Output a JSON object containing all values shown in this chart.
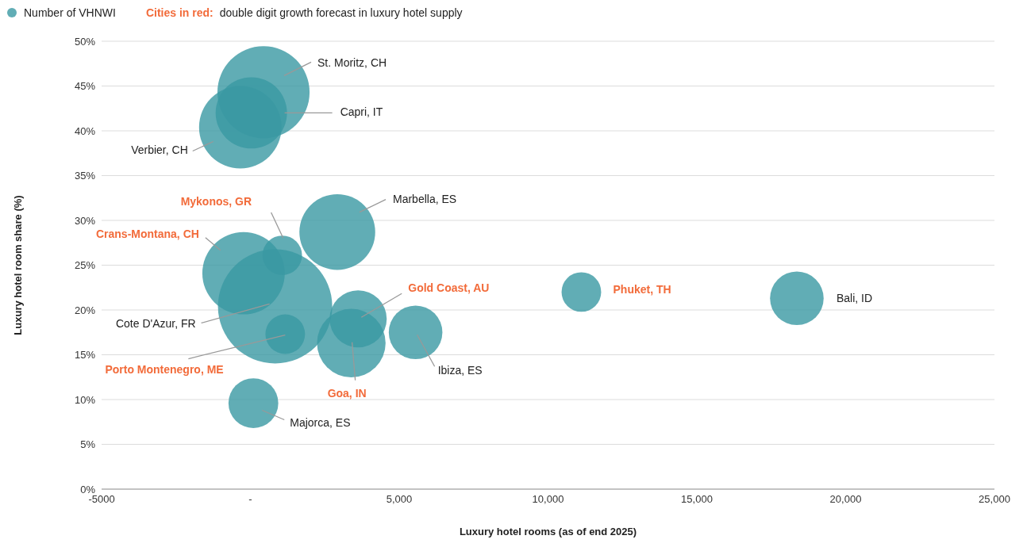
{
  "chart_data": {
    "type": "bubble",
    "xlabel": "Luxury hotel rooms (as of end 2025)",
    "ylabel": "Luxury hotel room share (%)",
    "x": [
      440,
      30,
      -340,
      2920,
      1070,
      -230,
      830,
      1170,
      3620,
      3390,
      5550,
      100,
      11120,
      18360
    ],
    "series": [
      {
        "name": "Number of VHNWI",
        "color": "#3a98a2",
        "values": [
          44.3,
          42.0,
          40.4,
          28.7,
          26.1,
          24.1,
          20.4,
          17.3,
          19.0,
          16.3,
          17.5,
          9.6,
          22.0,
          21.3
        ],
        "sizes": [
          0.65,
          0.39,
          0.52,
          0.44,
          0.12,
          0.52,
          1,
          0.12,
          0.25,
          0.36,
          0.22,
          0.19,
          0.12,
          0.22
        ],
        "value_labels": [
          "St. Moritz, CH",
          "Capri, IT",
          "Verbier, CH",
          "Marbella, ES",
          "Mykonos, GR",
          "Crans-Montana, CH",
          "Cote D'Azur, FR",
          "Porto Montenegro, ME",
          "Gold Coast, AU",
          "Goa, IN",
          "Ibiza, ES",
          "Majorca, ES",
          "Phuket, TH",
          "Bali, ID"
        ]
      }
    ],
    "xlim": [
      -5000,
      25000
    ],
    "xticks": [
      -5000,
      {
        "value": 0,
        "label": "-"
      },
      {
        "value": 5000,
        "label": "5,000"
      },
      {
        "value": 10000,
        "label": "10,000"
      },
      {
        "value": 15000,
        "label": "15,000"
      },
      {
        "value": 20000,
        "label": "20,000"
      },
      {
        "value": 25000,
        "label": "25,000"
      }
    ],
    "ylim": [
      0,
      50
    ],
    "yticks": [
      {
        "value": 0,
        "label": "0%"
      },
      {
        "value": 5,
        "label": "5%"
      },
      {
        "value": 10,
        "label": "10%"
      },
      {
        "value": 15,
        "label": "15%"
      },
      {
        "value": 20,
        "label": "20%"
      },
      {
        "value": 25,
        "label": "25%"
      },
      {
        "value": 30,
        "label": "30%"
      },
      {
        "value": 35,
        "label": "35%"
      },
      {
        "value": 40,
        "label": "40%"
      },
      {
        "value": 45,
        "label": "45%"
      },
      {
        "value": 50,
        "label": "50%"
      }
    ],
    "grid": "y",
    "legend": "top left",
    "annotations": [
      "Cities in red:",
      "double digit growth forecast in luxury hotel supply"
    ]
  }
}
